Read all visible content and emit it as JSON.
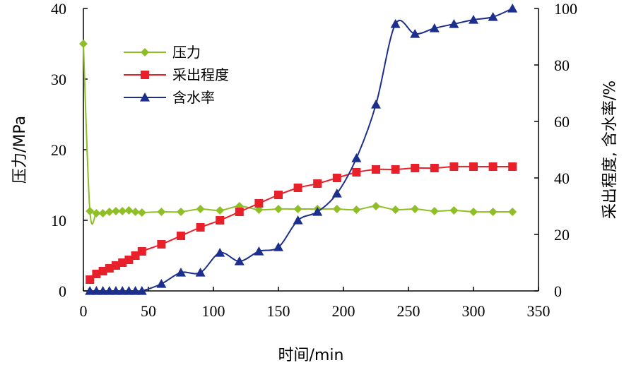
{
  "chart_data": {
    "type": "line",
    "x_axis": {
      "label": "时间/min",
      "min": 0,
      "max": 350,
      "ticks": [
        0,
        50,
        100,
        150,
        200,
        250,
        300,
        350
      ]
    },
    "y_left": {
      "label": "压力/MPa",
      "min": 0,
      "max": 40,
      "ticks": [
        0,
        10,
        20,
        30,
        40
      ]
    },
    "y_right": {
      "label": "采出程度, 含水率/%",
      "min": 0,
      "max": 100,
      "ticks": [
        0,
        20,
        40,
        60,
        80,
        100
      ]
    },
    "legend_position": "upper-left",
    "series": [
      {
        "name": "压力",
        "axis": "left",
        "color": "#8fbf26",
        "marker": "diamond",
        "x": [
          0,
          5,
          10,
          15,
          20,
          25,
          30,
          35,
          40,
          45,
          60,
          75,
          90,
          105,
          120,
          135,
          150,
          165,
          180,
          195,
          210,
          225,
          240,
          255,
          270,
          285,
          300,
          315,
          330
        ],
        "y": [
          35,
          11.3,
          11.0,
          11.0,
          11.2,
          11.3,
          11.3,
          11.4,
          11.2,
          11.1,
          11.2,
          11.2,
          11.6,
          11.4,
          12.0,
          11.5,
          11.6,
          11.6,
          11.6,
          11.6,
          11.5,
          12.0,
          11.5,
          11.6,
          11.3,
          11.4,
          11.2,
          11.2,
          11.2
        ]
      },
      {
        "name": "采出程度",
        "axis": "right",
        "color": "#e8202a",
        "marker": "square",
        "x": [
          5,
          10,
          15,
          20,
          25,
          30,
          35,
          40,
          45,
          60,
          75,
          90,
          105,
          120,
          135,
          150,
          165,
          180,
          195,
          210,
          225,
          240,
          255,
          270,
          285,
          300,
          315,
          330
        ],
        "y": [
          4,
          6,
          7,
          8,
          9,
          10,
          11,
          12.5,
          14,
          16.5,
          19.5,
          22.5,
          25,
          28,
          31,
          34,
          36.5,
          38,
          40,
          42,
          43,
          43,
          43.5,
          43.5,
          44,
          44,
          44,
          44
        ]
      },
      {
        "name": "含水率",
        "axis": "right",
        "color": "#1d2f8c",
        "marker": "triangle",
        "x": [
          5,
          10,
          15,
          20,
          25,
          30,
          35,
          40,
          45,
          60,
          75,
          90,
          105,
          120,
          135,
          150,
          165,
          180,
          195,
          210,
          225,
          240,
          255,
          270,
          285,
          300,
          315,
          330
        ],
        "y": [
          0,
          0,
          0,
          0,
          0,
          0,
          0,
          0,
          0,
          2.5,
          6.5,
          6.5,
          13.5,
          10.5,
          14,
          15.5,
          25,
          28,
          34.5,
          47,
          66,
          94.5,
          91,
          93,
          94.5,
          96,
          97,
          100
        ]
      }
    ]
  }
}
